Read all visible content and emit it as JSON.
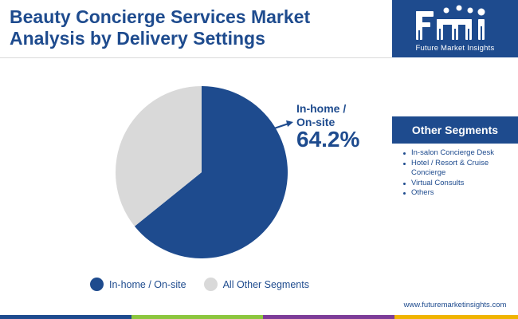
{
  "header": {
    "title_line1": "Beauty Concierge Services Market",
    "title_line2": "Analysis by Delivery Settings"
  },
  "brand": {
    "logo_mark": "fmi",
    "logo_name": "Future Market Insights",
    "website": "www.futuremarketinsights.com"
  },
  "sidebar": {
    "heading": "Other Segments",
    "items": [
      "In-salon Concierge Desk",
      "Hotel / Resort & Cruise Concierge",
      "Virtual Consults",
      "Others"
    ]
  },
  "colors": {
    "primary": "#1e4b8e",
    "secondary": "#d9d9d9",
    "bottom_bar": [
      "#1e4b8e",
      "#f0b400",
      "#e06a1c",
      "#8cc63e",
      "#7d3c98"
    ]
  },
  "chart_data": {
    "type": "pie",
    "slices": [
      {
        "label": "In-home / On-site",
        "value": 64.2,
        "color": "#1e4b8e"
      },
      {
        "label": "All Other Segments",
        "value": 35.8,
        "color": "#d9d9d9"
      }
    ],
    "callout": {
      "label_line1": "In-home /",
      "label_line2": "On-site",
      "value": "64.2%"
    },
    "legend": [
      "In-home / On-site",
      "All Other Segments"
    ],
    "legend_position": "bottom"
  }
}
